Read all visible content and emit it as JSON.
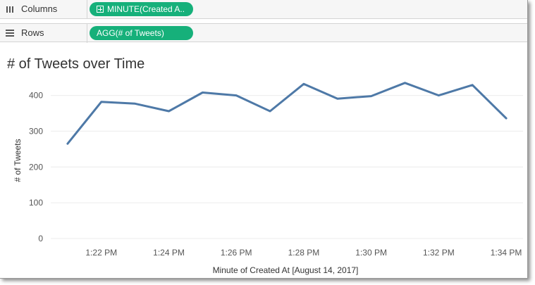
{
  "shelves": {
    "columns": {
      "label": "Columns",
      "pill": "MINUTE(Created A..",
      "icon": "columns-icon"
    },
    "rows": {
      "label": "Rows",
      "pill": "AGG(# of Tweets)",
      "icon": "rows-icon"
    }
  },
  "colors": {
    "pill": "#16b07a",
    "line": "#4e79a7",
    "grid": "#ececec"
  },
  "chart_data": {
    "type": "line",
    "title": "# of Tweets over Time",
    "xlabel": "Minute of Created At [August 14, 2017]",
    "ylabel": "# of Tweets",
    "x": [
      "1:21 PM",
      "1:22 PM",
      "1:23 PM",
      "1:24 PM",
      "1:25 PM",
      "1:26 PM",
      "1:27 PM",
      "1:28 PM",
      "1:29 PM",
      "1:30 PM",
      "1:31 PM",
      "1:32 PM",
      "1:33 PM",
      "1:34 PM"
    ],
    "xtick_labels": [
      "1:22 PM",
      "1:24 PM",
      "1:26 PM",
      "1:28 PM",
      "1:30 PM",
      "1:32 PM",
      "1:34 PM"
    ],
    "series": [
      {
        "values": [
          265,
          382,
          377,
          356,
          408,
          400,
          356,
          432,
          391,
          398,
          435,
          400,
          429,
          336
        ]
      }
    ],
    "yticks": [
      0,
      100,
      200,
      300,
      400
    ],
    "ylim": [
      -10,
      470
    ],
    "grid": true,
    "legend": "none"
  }
}
